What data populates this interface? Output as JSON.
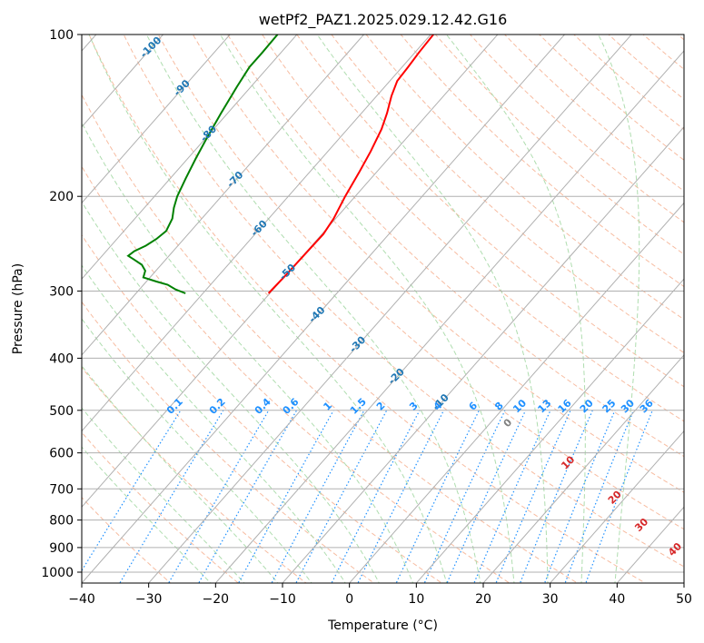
{
  "chart_data": {
    "type": "skew-t",
    "title": "wetPf2_PAZ1.2025.029.12.42.G16",
    "xlabel": "Temperature (°C)",
    "ylabel": "Pressure (hPa)",
    "xlim": [
      -40,
      50
    ],
    "ylim": [
      1050,
      100
    ],
    "y_scale": "log",
    "grid": true,
    "x_ticks": [
      "−40",
      "−30",
      "−20",
      "−10",
      "0",
      "10",
      "20",
      "30",
      "40",
      "50"
    ],
    "x_tick_values": [
      -40,
      -30,
      -20,
      -10,
      0,
      10,
      20,
      30,
      40,
      50
    ],
    "y_ticks": [
      "100",
      "200",
      "300",
      "400",
      "500",
      "600",
      "700",
      "800",
      "900",
      "1000"
    ],
    "y_tick_values": [
      100,
      200,
      300,
      400,
      500,
      600,
      700,
      800,
      900,
      1000
    ],
    "series": [
      {
        "role": "temperature",
        "color": "#ff0000",
        "points": [
          [
            303,
            -50.2
          ],
          [
            280,
            -50.0
          ],
          [
            255,
            -49.9
          ],
          [
            235,
            -49.8
          ],
          [
            220,
            -50.3
          ],
          [
            200,
            -51.5
          ],
          [
            180,
            -52.6
          ],
          [
            165,
            -53.6
          ],
          [
            150,
            -54.9
          ],
          [
            140,
            -56.2
          ],
          [
            130,
            -57.8
          ],
          [
            122,
            -58.9
          ],
          [
            115,
            -59.1
          ],
          [
            108,
            -59.4
          ],
          [
            100,
            -59.6
          ]
        ]
      },
      {
        "role": "dewpoint",
        "color": "#008000",
        "points": [
          [
            303,
            -62.6
          ],
          [
            298,
            -64.6
          ],
          [
            292,
            -66.4
          ],
          [
            288,
            -68.5
          ],
          [
            283,
            -71.0
          ],
          [
            275,
            -71.6
          ],
          [
            268,
            -72.9
          ],
          [
            262,
            -74.8
          ],
          [
            258,
            -76.1
          ],
          [
            253,
            -75.8
          ],
          [
            247,
            -74.8
          ],
          [
            240,
            -74.1
          ],
          [
            232,
            -73.7
          ],
          [
            220,
            -74.4
          ],
          [
            210,
            -75.6
          ],
          [
            200,
            -76.6
          ],
          [
            185,
            -77.7
          ],
          [
            170,
            -78.8
          ],
          [
            155,
            -79.9
          ],
          [
            140,
            -81.0
          ],
          [
            125,
            -82.1
          ],
          [
            115,
            -82.8
          ],
          [
            108,
            -82.8
          ],
          [
            100,
            -82.9
          ]
        ]
      }
    ],
    "dry_adiabat_labels": [
      "-100",
      "-90",
      "-80",
      "-70",
      "-60",
      "-50",
      "-40",
      "-30",
      "-20",
      "-10"
    ],
    "mixing_ratio_labels": [
      "0.1",
      "0.2",
      "0.4",
      "0.6",
      "1",
      "1.5",
      "2",
      "3",
      "4",
      "6",
      "8",
      "10",
      "13",
      "16",
      "20",
      "25",
      "30",
      "36"
    ],
    "moist_adiabat_labels": [
      "0",
      "10",
      "20",
      "30",
      "40"
    ],
    "colors": {
      "temperature": "#ff0000",
      "dewpoint": "#008000",
      "dry_adiabat": "#f4a582",
      "moist_adiabat": "#a6d9a6",
      "mixing_ratio": "#1e90ff",
      "dry_adiabat_label": "#1f77b4",
      "mixing_ratio_label": "#1e90ff",
      "moist_adiabat_label": "#d62728",
      "grid": "#b0b0b0"
    }
  }
}
